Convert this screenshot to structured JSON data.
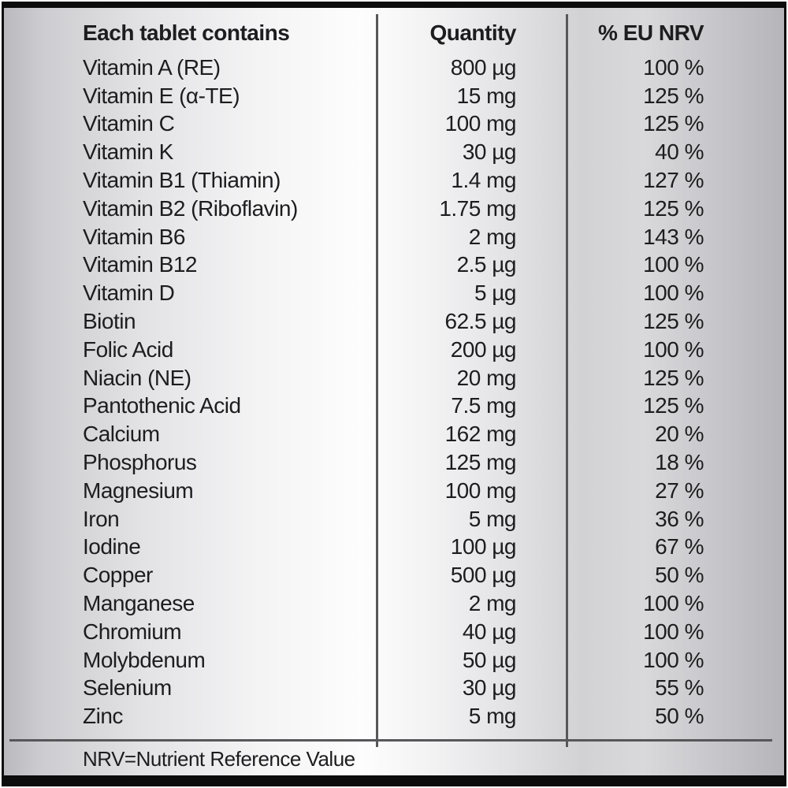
{
  "table": {
    "header": {
      "name": "Each tablet contains",
      "quantity": "Quantity",
      "nrv": "% EU NRV"
    },
    "rows": [
      {
        "name": "Vitamin A (RE)",
        "quantity": "800 µg",
        "nrv": "100 %"
      },
      {
        "name": "Vitamin E (α-TE)",
        "quantity": "15 mg",
        "nrv": "125 %"
      },
      {
        "name": "Vitamin C",
        "quantity": "100 mg",
        "nrv": "125 %"
      },
      {
        "name": "Vitamin K",
        "quantity": "30 µg",
        "nrv": "40 %"
      },
      {
        "name": "Vitamin B1 (Thiamin)",
        "quantity": "1.4 mg",
        "nrv": "127 %"
      },
      {
        "name": "Vitamin B2 (Riboflavin)",
        "quantity": "1.75 mg",
        "nrv": "125 %"
      },
      {
        "name": "Vitamin B6",
        "quantity": "2 mg",
        "nrv": "143 %"
      },
      {
        "name": "Vitamin B12",
        "quantity": "2.5 µg",
        "nrv": "100 %"
      },
      {
        "name": "Vitamin D",
        "quantity": "5 µg",
        "nrv": "100 %"
      },
      {
        "name": "Biotin",
        "quantity": "62.5 µg",
        "nrv": "125 %"
      },
      {
        "name": "Folic Acid",
        "quantity": "200 µg",
        "nrv": "100 %"
      },
      {
        "name": "Niacin (NE)",
        "quantity": "20 mg",
        "nrv": "125 %"
      },
      {
        "name": "Pantothenic Acid",
        "quantity": "7.5 mg",
        "nrv": "125 %"
      },
      {
        "name": "Calcium",
        "quantity": "162 mg",
        "nrv": "20 %"
      },
      {
        "name": "Phosphorus",
        "quantity": "125 mg",
        "nrv": "18 %"
      },
      {
        "name": "Magnesium",
        "quantity": "100 mg",
        "nrv": "27 %"
      },
      {
        "name": "Iron",
        "quantity": "5 mg",
        "nrv": "36 %"
      },
      {
        "name": "Iodine",
        "quantity": "100 µg",
        "nrv": "67 %"
      },
      {
        "name": "Copper",
        "quantity": "500 µg",
        "nrv": "50 %"
      },
      {
        "name": "Manganese",
        "quantity": "2 mg",
        "nrv": "100 %"
      },
      {
        "name": "Chromium",
        "quantity": "40 µg",
        "nrv": "100 %"
      },
      {
        "name": "Molybdenum",
        "quantity": "50 µg",
        "nrv": "100 %"
      },
      {
        "name": "Selenium",
        "quantity": "30 µg",
        "nrv": "55 %"
      },
      {
        "name": "Zinc",
        "quantity": "5 mg",
        "nrv": "50 %"
      }
    ],
    "footnote": "NRV=Nutrient Reference Value"
  },
  "colors": {
    "text": "#1d1d1f",
    "frame_black": "#0c0c0c",
    "divider_gray": "#57575a",
    "metal_light": "#fdfdfd",
    "metal_dark": "#b5b5ba"
  }
}
